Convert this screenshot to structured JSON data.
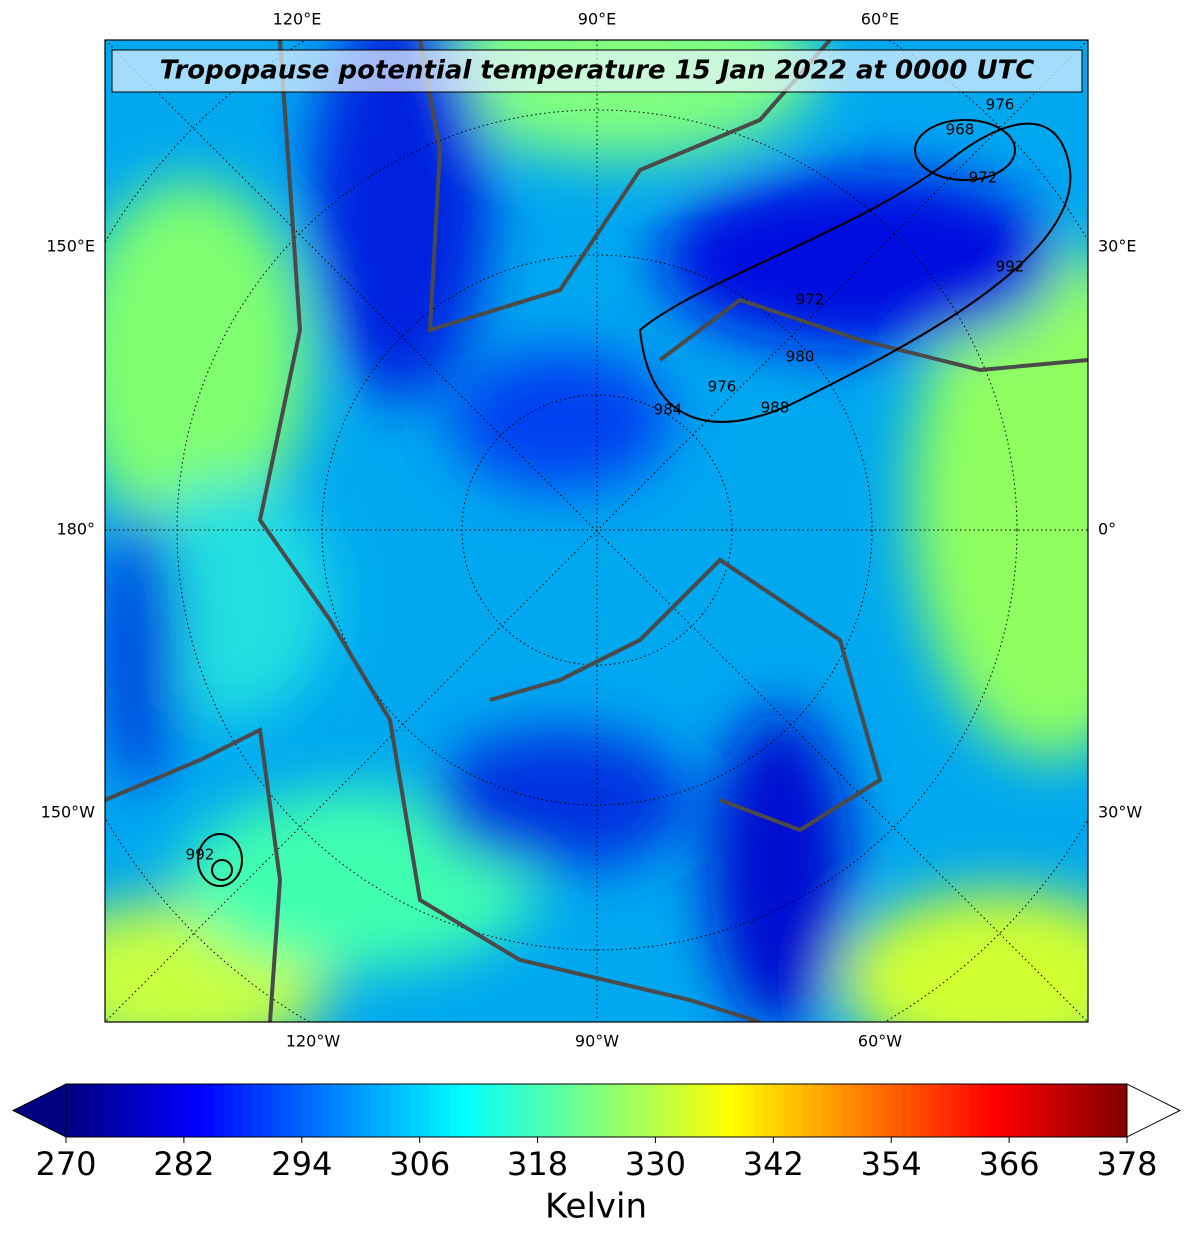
{
  "title": "Tropopause potential temperature 15 Jan 2022 at 0000 UTC",
  "longitude_labels": {
    "top": [
      "120°E",
      "90°E",
      "60°E"
    ],
    "bottom": [
      "120°W",
      "90°W",
      "60°W"
    ],
    "left": [
      "150°E",
      "180°",
      "150°W"
    ],
    "right": [
      "30°E",
      "0°",
      "30°W"
    ]
  },
  "pressure_contour_labels": [
    "976",
    "968",
    "972",
    "992",
    "972",
    "980",
    "976",
    "984",
    "988",
    "992"
  ],
  "colorbar": {
    "label": "Kelvin",
    "lim": [
      270,
      378
    ],
    "ticks": [
      270,
      282,
      294,
      306,
      318,
      330,
      342,
      354,
      366,
      378
    ]
  }
}
